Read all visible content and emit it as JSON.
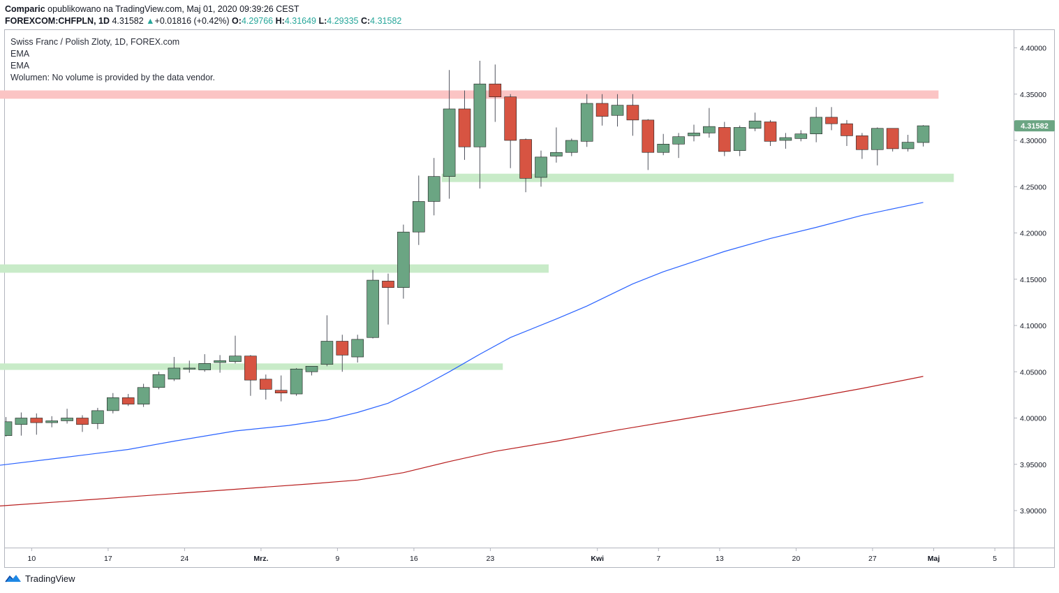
{
  "header": {
    "author": "Comparic",
    "published": "opublikowano na TradingView.com, Maj 01, 2020 09:39:26 CEST",
    "symbol": "FOREXCOM:CHFPLN, 1D",
    "last": "4.31582",
    "change": "+0.01816 (+0.42%)",
    "open_label": "O:",
    "open": "4.29766",
    "high_label": "H:",
    "high": "4.31649",
    "low_label": "L:",
    "low": "4.29335",
    "close_label": "C:",
    "close": "4.31582"
  },
  "legend": {
    "title": "Swiss Franc / Polish Zloty, 1D, FOREX.com",
    "ema1": "EMA",
    "ema2": "EMA",
    "volume": "Wolumen: No volume is provided by the data vendor."
  },
  "footer": {
    "brand": "TradingView"
  },
  "colors": {
    "up": "#6ba583",
    "down": "#d75442",
    "ema_fast": "#2962ff",
    "ema_slow": "#b71c1c",
    "support_zone": "#c8ebc8",
    "resistance_zone": "#fbc4c4",
    "price_tag": "#6ba583"
  },
  "chart_data": {
    "type": "candlestick",
    "y_ticks": [
      "4.40000",
      "4.35000",
      "4.30000",
      "4.25000",
      "4.20000",
      "4.15000",
      "4.10000",
      "4.05000",
      "4.00000",
      "3.95000",
      "3.90000"
    ],
    "ylim": [
      3.86,
      4.42
    ],
    "x_ticks": [
      {
        "label": "10",
        "index": 1
      },
      {
        "label": "17",
        "index": 6
      },
      {
        "label": "24",
        "index": 11
      },
      {
        "label": "Mrz.",
        "index": 16
      },
      {
        "label": "9",
        "index": 21
      },
      {
        "label": "16",
        "index": 26
      },
      {
        "label": "23",
        "index": 31
      },
      {
        "label": "Kwi",
        "index": 38
      },
      {
        "label": "7",
        "index": 42
      },
      {
        "label": "13",
        "index": 46
      },
      {
        "label": "20",
        "index": 51
      },
      {
        "label": "27",
        "index": 56
      },
      {
        "label": "Maj",
        "index": 60
      },
      {
        "label": "5",
        "index": 64
      }
    ],
    "current_price": "4.31582",
    "current_value": 4.3158,
    "candles": [
      {
        "o": 3.981,
        "h": 4.001,
        "l": 3.98,
        "c": 3.996
      },
      {
        "o": 3.993,
        "h": 4.006,
        "l": 3.981,
        "c": 4.0
      },
      {
        "o": 4.0,
        "h": 4.005,
        "l": 3.982,
        "c": 3.995
      },
      {
        "o": 3.995,
        "h": 4.002,
        "l": 3.99,
        "c": 3.997
      },
      {
        "o": 3.997,
        "h": 4.01,
        "l": 3.994,
        "c": 4.0
      },
      {
        "o": 4.0,
        "h": 4.003,
        "l": 3.985,
        "c": 3.993
      },
      {
        "o": 3.994,
        "h": 4.011,
        "l": 3.988,
        "c": 4.008
      },
      {
        "o": 4.008,
        "h": 4.027,
        "l": 4.005,
        "c": 4.022
      },
      {
        "o": 4.022,
        "h": 4.026,
        "l": 4.013,
        "c": 4.015
      },
      {
        "o": 4.015,
        "h": 4.037,
        "l": 4.012,
        "c": 4.033
      },
      {
        "o": 4.033,
        "h": 4.05,
        "l": 4.031,
        "c": 4.047
      },
      {
        "o": 4.042,
        "h": 4.066,
        "l": 4.04,
        "c": 4.054
      },
      {
        "o": 4.053,
        "h": 4.062,
        "l": 4.049,
        "c": 4.054
      },
      {
        "o": 4.052,
        "h": 4.069,
        "l": 4.05,
        "c": 4.059
      },
      {
        "o": 4.06,
        "h": 4.068,
        "l": 4.049,
        "c": 4.062
      },
      {
        "o": 4.061,
        "h": 4.089,
        "l": 4.059,
        "c": 4.067
      },
      {
        "o": 4.067,
        "h": 4.068,
        "l": 4.024,
        "c": 4.041
      },
      {
        "o": 4.042,
        "h": 4.047,
        "l": 4.02,
        "c": 4.031
      },
      {
        "o": 4.03,
        "h": 4.046,
        "l": 4.018,
        "c": 4.027
      },
      {
        "o": 4.026,
        "h": 4.054,
        "l": 4.024,
        "c": 4.053
      },
      {
        "o": 4.05,
        "h": 4.056,
        "l": 4.046,
        "c": 4.056
      },
      {
        "o": 4.058,
        "h": 4.111,
        "l": 4.056,
        "c": 4.083
      },
      {
        "o": 4.083,
        "h": 4.09,
        "l": 4.05,
        "c": 4.068
      },
      {
        "o": 4.066,
        "h": 4.09,
        "l": 4.06,
        "c": 4.085
      },
      {
        "o": 4.087,
        "h": 4.16,
        "l": 4.086,
        "c": 4.149
      },
      {
        "o": 4.148,
        "h": 4.156,
        "l": 4.101,
        "c": 4.141
      },
      {
        "o": 4.141,
        "h": 4.209,
        "l": 4.129,
        "c": 4.201
      },
      {
        "o": 4.201,
        "h": 4.262,
        "l": 4.187,
        "c": 4.234
      },
      {
        "o": 4.234,
        "h": 4.281,
        "l": 4.219,
        "c": 4.261
      },
      {
        "o": 4.261,
        "h": 4.376,
        "l": 4.237,
        "c": 4.334
      },
      {
        "o": 4.334,
        "h": 4.354,
        "l": 4.279,
        "c": 4.293
      },
      {
        "o": 4.293,
        "h": 4.386,
        "l": 4.248,
        "c": 4.361
      },
      {
        "o": 4.361,
        "h": 4.382,
        "l": 4.32,
        "c": 4.347
      },
      {
        "o": 4.347,
        "h": 4.35,
        "l": 4.27,
        "c": 4.3
      },
      {
        "o": 4.301,
        "h": 4.302,
        "l": 4.244,
        "c": 4.259
      },
      {
        "o": 4.26,
        "h": 4.289,
        "l": 4.25,
        "c": 4.282
      },
      {
        "o": 4.283,
        "h": 4.314,
        "l": 4.276,
        "c": 4.287
      },
      {
        "o": 4.287,
        "h": 4.302,
        "l": 4.283,
        "c": 4.3
      },
      {
        "o": 4.299,
        "h": 4.35,
        "l": 4.293,
        "c": 4.34
      },
      {
        "o": 4.34,
        "h": 4.35,
        "l": 4.316,
        "c": 4.326
      },
      {
        "o": 4.327,
        "h": 4.35,
        "l": 4.315,
        "c": 4.338
      },
      {
        "o": 4.338,
        "h": 4.35,
        "l": 4.305,
        "c": 4.322
      },
      {
        "o": 4.322,
        "h": 4.323,
        "l": 4.268,
        "c": 4.287
      },
      {
        "o": 4.287,
        "h": 4.307,
        "l": 4.284,
        "c": 4.296
      },
      {
        "o": 4.296,
        "h": 4.308,
        "l": 4.281,
        "c": 4.304
      },
      {
        "o": 4.305,
        "h": 4.317,
        "l": 4.299,
        "c": 4.308
      },
      {
        "o": 4.308,
        "h": 4.335,
        "l": 4.303,
        "c": 4.315
      },
      {
        "o": 4.314,
        "h": 4.32,
        "l": 4.283,
        "c": 4.288
      },
      {
        "o": 4.289,
        "h": 4.316,
        "l": 4.283,
        "c": 4.314
      },
      {
        "o": 4.313,
        "h": 4.33,
        "l": 4.31,
        "c": 4.321
      },
      {
        "o": 4.32,
        "h": 4.322,
        "l": 4.294,
        "c": 4.299
      },
      {
        "o": 4.3,
        "h": 4.308,
        "l": 4.291,
        "c": 4.303
      },
      {
        "o": 4.302,
        "h": 4.311,
        "l": 4.299,
        "c": 4.307
      },
      {
        "o": 4.307,
        "h": 4.336,
        "l": 4.298,
        "c": 4.325
      },
      {
        "o": 4.325,
        "h": 4.336,
        "l": 4.311,
        "c": 4.318
      },
      {
        "o": 4.318,
        "h": 4.322,
        "l": 4.294,
        "c": 4.305
      },
      {
        "o": 4.305,
        "h": 4.308,
        "l": 4.28,
        "c": 4.29
      },
      {
        "o": 4.29,
        "h": 4.314,
        "l": 4.273,
        "c": 4.313
      },
      {
        "o": 4.313,
        "h": 4.313,
        "l": 4.288,
        "c": 4.291
      },
      {
        "o": 4.291,
        "h": 4.306,
        "l": 4.288,
        "c": 4.298
      },
      {
        "o": 4.2977,
        "h": 4.3165,
        "l": 4.2934,
        "c": 4.3158
      }
    ],
    "ema_fast": [
      [
        -0.4,
        3.949
      ],
      [
        3.6,
        3.957
      ],
      [
        8.0,
        3.966
      ],
      [
        11.0,
        3.975
      ],
      [
        15.0,
        3.986
      ],
      [
        18.5,
        3.992
      ],
      [
        21.0,
        3.998
      ],
      [
        23.0,
        4.006
      ],
      [
        25.0,
        4.016
      ],
      [
        27.0,
        4.032
      ],
      [
        29.0,
        4.05
      ],
      [
        31.0,
        4.069
      ],
      [
        33.0,
        4.087
      ],
      [
        36.0,
        4.107
      ],
      [
        38.0,
        4.121
      ],
      [
        41.0,
        4.145
      ],
      [
        43.0,
        4.158
      ],
      [
        47.0,
        4.18
      ],
      [
        50.0,
        4.194
      ],
      [
        53.0,
        4.206
      ],
      [
        56.0,
        4.219
      ],
      [
        60.0,
        4.233
      ]
    ],
    "ema_slow": [
      [
        -0.4,
        3.905
      ],
      [
        4.0,
        3.91
      ],
      [
        9.0,
        3.916
      ],
      [
        15.0,
        3.923
      ],
      [
        20.0,
        3.929
      ],
      [
        23.0,
        3.933
      ],
      [
        26.0,
        3.941
      ],
      [
        29.0,
        3.953
      ],
      [
        32.0,
        3.964
      ],
      [
        36.0,
        3.975
      ],
      [
        40.0,
        3.987
      ],
      [
        44.0,
        3.998
      ],
      [
        48.0,
        4.009
      ],
      [
        52.0,
        4.02
      ],
      [
        56.0,
        4.032
      ],
      [
        60.0,
        4.045
      ]
    ],
    "zones": [
      {
        "kind": "resistance",
        "from_index": -0.5,
        "to_index": 61.0,
        "low": 4.345,
        "high": 4.354
      },
      {
        "kind": "support",
        "from_index": 28.5,
        "to_index": 62.0,
        "low": 4.255,
        "high": 4.264
      },
      {
        "kind": "support",
        "from_index": -0.5,
        "to_index": 35.5,
        "low": 4.157,
        "high": 4.166
      },
      {
        "kind": "support",
        "from_index": -0.5,
        "to_index": 32.5,
        "low": 4.052,
        "high": 4.059
      }
    ]
  }
}
